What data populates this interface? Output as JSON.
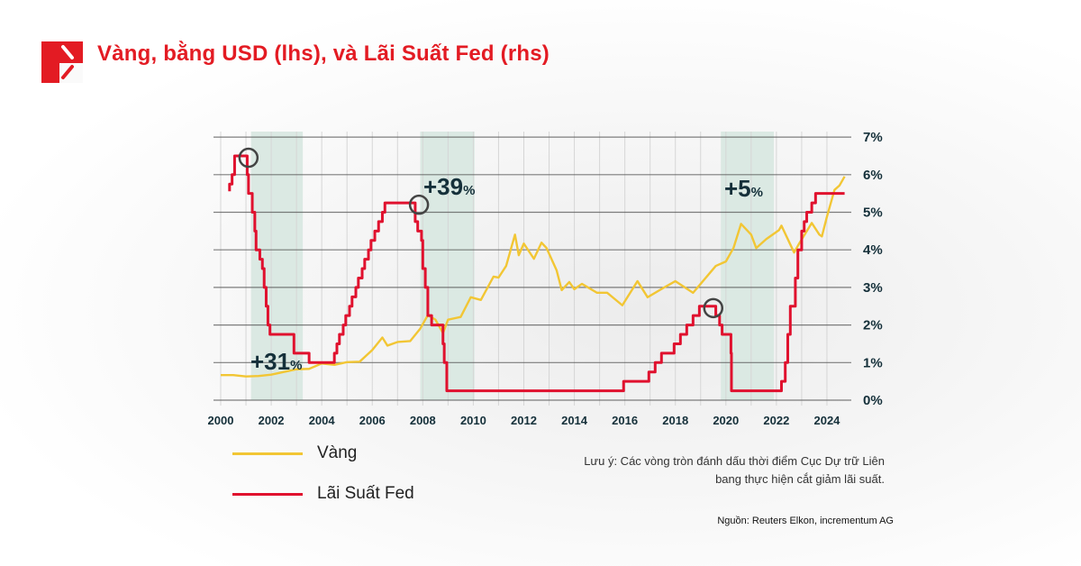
{
  "header": {
    "title": "Vàng, bằng USD (lhs), và Lãi Suất Fed (rhs)",
    "logo_icon": "red-square-slash-logo"
  },
  "colors": {
    "brand": "#e31b23",
    "gold": "#f2c634",
    "fed": "#e0112e",
    "shade": "#dbe9e3",
    "circle": "#444444",
    "annotation": "#15303a"
  },
  "chart_data": {
    "type": "line",
    "title": "Vàng, bằng USD (lhs), và Lãi Suất Fed (rhs)",
    "x_ticks": [
      "2000",
      "2002",
      "2004",
      "2006",
      "2008",
      "2010",
      "2012",
      "2014",
      "2016",
      "2018",
      "2020",
      "2022",
      "2024"
    ],
    "y_right_ticks": [
      "0%",
      "1%",
      "2%",
      "3%",
      "4%",
      "5%",
      "6%",
      "7%"
    ],
    "xlim": [
      2000,
      2024.8
    ],
    "ylim_right": [
      0,
      7
    ],
    "y_left_axis_labels_shown": false,
    "grid": true,
    "legend_placement": "bottom-left",
    "shaded_periods": [
      [
        2001.2,
        2003.25
      ],
      [
        2007.9,
        2010.05
      ],
      [
        2019.8,
        2021.9
      ]
    ],
    "annotations": [
      {
        "text_big": "+31",
        "text_small": "%",
        "period": 0
      },
      {
        "text_big": "+39",
        "text_small": "%",
        "period": 1
      },
      {
        "text_big": "+5",
        "text_small": "%",
        "period": 2
      }
    ],
    "rate_cut_circles": [
      [
        2001.1,
        6.45
      ],
      [
        2007.85,
        5.2
      ],
      [
        2019.5,
        2.45
      ]
    ],
    "series": [
      {
        "name": "Vàng",
        "axis": "left",
        "unit": "USD",
        "points": [
          [
            2000.0,
            280
          ],
          [
            2000.5,
            280
          ],
          [
            2001.0,
            265
          ],
          [
            2001.5,
            270
          ],
          [
            2002.0,
            285
          ],
          [
            2002.5,
            315
          ],
          [
            2003.0,
            345
          ],
          [
            2003.5,
            350
          ],
          [
            2004.0,
            410
          ],
          [
            2004.5,
            395
          ],
          [
            2005.0,
            425
          ],
          [
            2005.5,
            430
          ],
          [
            2006.0,
            560
          ],
          [
            2006.4,
            700
          ],
          [
            2006.6,
            610
          ],
          [
            2007.0,
            650
          ],
          [
            2007.5,
            660
          ],
          [
            2007.9,
            800
          ],
          [
            2008.2,
            950
          ],
          [
            2008.5,
            900
          ],
          [
            2008.8,
            750
          ],
          [
            2009.0,
            900
          ],
          [
            2009.5,
            930
          ],
          [
            2009.9,
            1150
          ],
          [
            2010.3,
            1120
          ],
          [
            2010.8,
            1380
          ],
          [
            2011.0,
            1370
          ],
          [
            2011.3,
            1500
          ],
          [
            2011.65,
            1850
          ],
          [
            2011.8,
            1620
          ],
          [
            2012.0,
            1750
          ],
          [
            2012.4,
            1580
          ],
          [
            2012.7,
            1760
          ],
          [
            2012.9,
            1700
          ],
          [
            2013.3,
            1450
          ],
          [
            2013.5,
            1230
          ],
          [
            2013.8,
            1320
          ],
          [
            2014.0,
            1240
          ],
          [
            2014.3,
            1300
          ],
          [
            2014.9,
            1200
          ],
          [
            2015.3,
            1200
          ],
          [
            2015.9,
            1060
          ],
          [
            2016.5,
            1330
          ],
          [
            2016.9,
            1150
          ],
          [
            2017.5,
            1250
          ],
          [
            2018.0,
            1330
          ],
          [
            2018.7,
            1200
          ],
          [
            2019.0,
            1300
          ],
          [
            2019.6,
            1500
          ],
          [
            2020.0,
            1550
          ],
          [
            2020.3,
            1700
          ],
          [
            2020.6,
            1970
          ],
          [
            2021.0,
            1850
          ],
          [
            2021.2,
            1700
          ],
          [
            2021.6,
            1800
          ],
          [
            2022.1,
            1900
          ],
          [
            2022.2,
            1950
          ],
          [
            2022.7,
            1650
          ],
          [
            2022.9,
            1750
          ],
          [
            2023.4,
            1980
          ],
          [
            2023.7,
            1850
          ],
          [
            2023.8,
            1830
          ],
          [
            2024.0,
            2050
          ],
          [
            2024.3,
            2350
          ],
          [
            2024.5,
            2400
          ],
          [
            2024.7,
            2500
          ]
        ]
      },
      {
        "name": "Lãi Suất Fed",
        "axis": "right",
        "unit": "%",
        "step": true,
        "points": [
          [
            2000.35,
            5.75
          ],
          [
            2000.45,
            6.0
          ],
          [
            2000.55,
            6.5
          ],
          [
            2001.05,
            6.0
          ],
          [
            2001.1,
            5.5
          ],
          [
            2001.25,
            5.0
          ],
          [
            2001.35,
            4.5
          ],
          [
            2001.4,
            4.0
          ],
          [
            2001.55,
            3.75
          ],
          [
            2001.65,
            3.5
          ],
          [
            2001.72,
            3.0
          ],
          [
            2001.8,
            2.5
          ],
          [
            2001.87,
            2.0
          ],
          [
            2001.95,
            1.75
          ],
          [
            2002.9,
            1.25
          ],
          [
            2003.5,
            1.0
          ],
          [
            2004.5,
            1.25
          ],
          [
            2004.6,
            1.5
          ],
          [
            2004.7,
            1.75
          ],
          [
            2004.85,
            2.0
          ],
          [
            2004.95,
            2.25
          ],
          [
            2005.1,
            2.5
          ],
          [
            2005.2,
            2.75
          ],
          [
            2005.35,
            3.0
          ],
          [
            2005.45,
            3.25
          ],
          [
            2005.6,
            3.5
          ],
          [
            2005.7,
            3.75
          ],
          [
            2005.85,
            4.0
          ],
          [
            2005.95,
            4.25
          ],
          [
            2006.1,
            4.5
          ],
          [
            2006.25,
            4.75
          ],
          [
            2006.4,
            5.0
          ],
          [
            2006.5,
            5.25
          ],
          [
            2007.7,
            4.75
          ],
          [
            2007.8,
            4.5
          ],
          [
            2007.95,
            4.25
          ],
          [
            2008.0,
            3.5
          ],
          [
            2008.1,
            3.0
          ],
          [
            2008.2,
            2.25
          ],
          [
            2008.35,
            2.0
          ],
          [
            2008.8,
            1.5
          ],
          [
            2008.85,
            1.0
          ],
          [
            2008.95,
            0.25
          ],
          [
            2015.95,
            0.5
          ],
          [
            2016.95,
            0.75
          ],
          [
            2017.2,
            1.0
          ],
          [
            2017.45,
            1.25
          ],
          [
            2017.95,
            1.5
          ],
          [
            2018.2,
            1.75
          ],
          [
            2018.45,
            2.0
          ],
          [
            2018.7,
            2.25
          ],
          [
            2018.95,
            2.5
          ],
          [
            2019.6,
            2.25
          ],
          [
            2019.75,
            2.0
          ],
          [
            2019.85,
            1.75
          ],
          [
            2020.2,
            1.25
          ],
          [
            2020.22,
            0.25
          ],
          [
            2022.2,
            0.5
          ],
          [
            2022.35,
            1.0
          ],
          [
            2022.45,
            1.75
          ],
          [
            2022.55,
            2.5
          ],
          [
            2022.75,
            3.25
          ],
          [
            2022.85,
            4.0
          ],
          [
            2023.0,
            4.5
          ],
          [
            2023.1,
            4.75
          ],
          [
            2023.2,
            5.0
          ],
          [
            2023.4,
            5.25
          ],
          [
            2023.55,
            5.5
          ],
          [
            2024.7,
            5.5
          ]
        ]
      }
    ]
  },
  "legend": {
    "gold_label": "Vàng",
    "fed_label": "Lãi Suất Fed"
  },
  "note": "Lưu ý: Các vòng tròn đánh dấu thời điểm Cục Dự trữ Liên bang thực hiện cắt giảm lãi suất.",
  "source": "Nguồn: Reuters Elkon, incrementum AG"
}
